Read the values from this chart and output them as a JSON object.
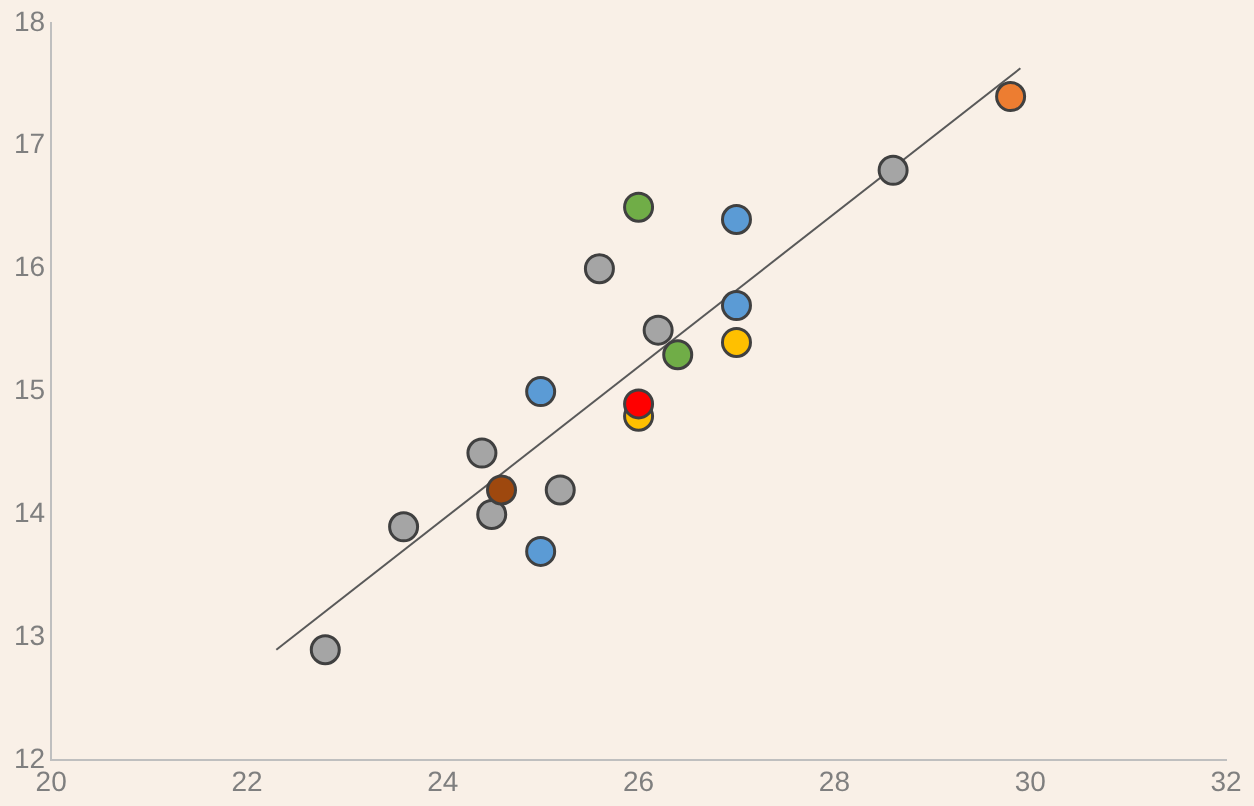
{
  "chart_data": {
    "type": "scatter",
    "xlim": [
      20,
      32
    ],
    "ylim": [
      12,
      18
    ],
    "xticks": [
      20,
      22,
      24,
      26,
      28,
      30,
      32
    ],
    "yticks": [
      12,
      13,
      14,
      15,
      16,
      17,
      18
    ],
    "grid": false,
    "legend": false,
    "marker": "circle",
    "series": [
      {
        "x": [
          22.8,
          23.6,
          24.4,
          24.5,
          24.6,
          25.0,
          25.0,
          25.2,
          25.6,
          26.0,
          26.0,
          26.0,
          26.2,
          26.4,
          27.0,
          27.0,
          27.0,
          28.6,
          29.8
        ],
        "values": [
          12.9,
          13.9,
          14.5,
          14.0,
          14.2,
          13.7,
          15.0,
          14.2,
          16.0,
          16.5,
          14.8,
          14.9,
          15.5,
          15.3,
          16.4,
          15.7,
          15.4,
          16.8,
          17.4
        ],
        "colors": [
          "#a5a5a5",
          "#a5a5a5",
          "#a5a5a5",
          "#a5a5a5",
          "#9e480e",
          "#5b9bd5",
          "#5b9bd5",
          "#a5a5a5",
          "#a5a5a5",
          "#70ad47",
          "#ffc000",
          "#ff0000",
          "#a5a5a5",
          "#70ad47",
          "#5b9bd5",
          "#5b9bd5",
          "#ffc000",
          "#a5a5a5",
          "#ed7d31"
        ]
      },
      {
        "type": "line",
        "x": [
          22.3,
          29.9
        ],
        "values": [
          12.9,
          17.63
        ],
        "color": "#595959",
        "marker": "none",
        "line_style": "solid"
      }
    ]
  }
}
